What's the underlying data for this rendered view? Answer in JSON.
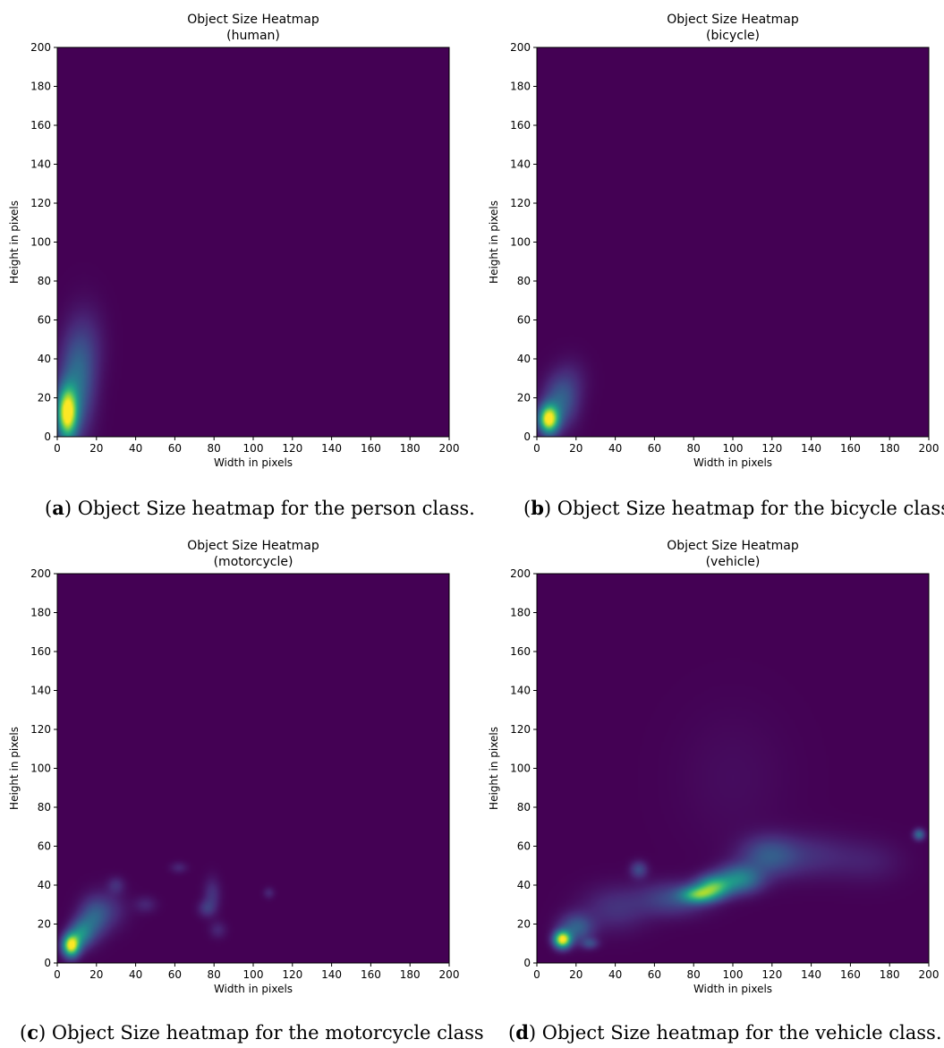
{
  "chart_data": [
    {
      "type": "heatmap",
      "title": "Object Size Heatmap",
      "subtitle": "(human)",
      "xlabel": "Width in pixels",
      "ylabel": "Height in pixels",
      "xlim": [
        0,
        200
      ],
      "ylim": [
        0,
        200
      ],
      "xticks": [
        0,
        20,
        40,
        60,
        80,
        100,
        120,
        140,
        160,
        180,
        200
      ],
      "yticks": [
        0,
        20,
        40,
        60,
        80,
        100,
        120,
        140,
        160,
        180,
        200
      ],
      "colormap": "viridis",
      "hotspots": [
        {
          "x": 5,
          "y": 12,
          "w": 3.5,
          "h": 9,
          "weight": 1.0
        },
        {
          "x": 10,
          "y": 28,
          "w": 6,
          "h": 18,
          "weight": 0.35
        },
        {
          "x": 17,
          "y": 48,
          "w": 6,
          "h": 14,
          "weight": 0.08
        }
      ],
      "caption": {
        "label": "a",
        "text": "Object Size heatmap for the person class."
      }
    },
    {
      "type": "heatmap",
      "title": "Object Size Heatmap",
      "subtitle": "(bicycle)",
      "xlabel": "Width in pixels",
      "ylabel": "Height in pixels",
      "xlim": [
        0,
        200
      ],
      "ylim": [
        0,
        200
      ],
      "xticks": [
        0,
        20,
        40,
        60,
        80,
        100,
        120,
        140,
        160,
        180,
        200
      ],
      "yticks": [
        0,
        20,
        40,
        60,
        80,
        100,
        120,
        140,
        160,
        180,
        200
      ],
      "colormap": "viridis",
      "hotspots": [
        {
          "x": 6,
          "y": 9,
          "w": 3.5,
          "h": 5,
          "weight": 1.0
        },
        {
          "x": 12,
          "y": 18,
          "w": 6,
          "h": 9,
          "weight": 0.3
        },
        {
          "x": 18,
          "y": 30,
          "w": 6,
          "h": 8,
          "weight": 0.07
        }
      ],
      "caption": {
        "label": "b",
        "text": "Object Size heatmap for the bicycle class."
      }
    },
    {
      "type": "heatmap",
      "title": "Object Size Heatmap",
      "subtitle": "(motorcycle)",
      "xlabel": "Width in pixels",
      "ylabel": "Height in pixels",
      "xlim": [
        0,
        200
      ],
      "ylim": [
        0,
        200
      ],
      "xticks": [
        0,
        20,
        40,
        60,
        80,
        100,
        120,
        140,
        160,
        180,
        200
      ],
      "yticks": [
        0,
        20,
        40,
        60,
        80,
        100,
        120,
        140,
        160,
        180,
        200
      ],
      "colormap": "viridis",
      "hotspots": [
        {
          "x": 7,
          "y": 9,
          "w": 3,
          "h": 4,
          "weight": 1.0
        },
        {
          "x": 12,
          "y": 15,
          "w": 4,
          "h": 5,
          "weight": 0.4
        },
        {
          "x": 18,
          "y": 22,
          "w": 5,
          "h": 7,
          "weight": 0.25
        },
        {
          "x": 25,
          "y": 27,
          "w": 7,
          "h": 7,
          "weight": 0.15
        },
        {
          "x": 30,
          "y": 40,
          "w": 3,
          "h": 3,
          "weight": 0.12
        },
        {
          "x": 45,
          "y": 30,
          "w": 4,
          "h": 3,
          "weight": 0.1
        },
        {
          "x": 62,
          "y": 49,
          "w": 3,
          "h": 2,
          "weight": 0.1
        },
        {
          "x": 76,
          "y": 28,
          "w": 3,
          "h": 3,
          "weight": 0.14
        },
        {
          "x": 79,
          "y": 35,
          "w": 3,
          "h": 6,
          "weight": 0.14
        },
        {
          "x": 82,
          "y": 17,
          "w": 3,
          "h": 3,
          "weight": 0.1
        },
        {
          "x": 108,
          "y": 36,
          "w": 2,
          "h": 2,
          "weight": 0.1
        }
      ],
      "caption": {
        "label": "c",
        "text": "Object Size heatmap for the motorcycle class"
      }
    },
    {
      "type": "heatmap",
      "title": "Object Size Heatmap",
      "subtitle": "(vehicle)",
      "xlabel": "Width in pixels",
      "ylabel": "Height in pixels",
      "xlim": [
        0,
        200
      ],
      "ylim": [
        0,
        200
      ],
      "xticks": [
        0,
        20,
        40,
        60,
        80,
        100,
        120,
        140,
        160,
        180,
        200
      ],
      "yticks": [
        0,
        20,
        40,
        60,
        80,
        100,
        120,
        140,
        160,
        180,
        200
      ],
      "colormap": "viridis",
      "hotspots": [
        {
          "x": 13,
          "y": 12,
          "w": 3,
          "h": 3,
          "weight": 1.0
        },
        {
          "x": 20,
          "y": 18,
          "w": 6,
          "h": 5,
          "weight": 0.3
        },
        {
          "x": 27,
          "y": 10,
          "w": 3,
          "h": 2,
          "weight": 0.2
        },
        {
          "x": 40,
          "y": 28,
          "w": 12,
          "h": 8,
          "weight": 0.14
        },
        {
          "x": 52,
          "y": 48,
          "w": 3,
          "h": 3,
          "weight": 0.22
        },
        {
          "x": 70,
          "y": 33,
          "w": 12,
          "h": 6,
          "weight": 0.22
        },
        {
          "x": 82,
          "y": 35,
          "w": 6,
          "h": 3,
          "weight": 0.55
        },
        {
          "x": 90,
          "y": 39,
          "w": 6,
          "h": 4,
          "weight": 0.6
        },
        {
          "x": 103,
          "y": 43,
          "w": 8,
          "h": 5,
          "weight": 0.45
        },
        {
          "x": 118,
          "y": 55,
          "w": 10,
          "h": 7,
          "weight": 0.25
        },
        {
          "x": 140,
          "y": 55,
          "w": 15,
          "h": 8,
          "weight": 0.12
        },
        {
          "x": 170,
          "y": 52,
          "w": 12,
          "h": 8,
          "weight": 0.07
        },
        {
          "x": 195,
          "y": 66,
          "w": 2,
          "h": 2,
          "weight": 0.35
        },
        {
          "x": 100,
          "y": 95,
          "w": 20,
          "h": 25,
          "weight": 0.03
        }
      ],
      "caption": {
        "label": "d",
        "text": "Object Size heatmap for the vehicle class."
      }
    }
  ]
}
